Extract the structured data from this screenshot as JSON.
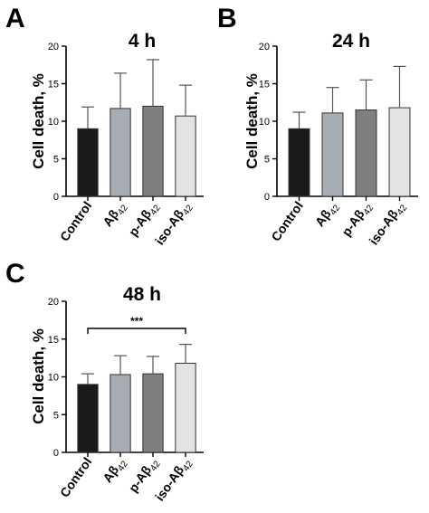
{
  "chart_data": [
    {
      "type": "bar",
      "panel": "A",
      "title": "4 h",
      "ylabel": "Cell death, %",
      "ylim": [
        0,
        20
      ],
      "yticks": [
        0,
        5,
        10,
        15,
        20
      ],
      "categories": [
        {
          "main": "Control",
          "sub": ""
        },
        {
          "main": "Aβ",
          "sub": "42"
        },
        {
          "main": "p-Aβ",
          "sub": "42"
        },
        {
          "main": "iso-Aβ",
          "sub": "42"
        }
      ],
      "values": [
        9.0,
        11.7,
        12.0,
        10.7
      ],
      "errors": [
        2.9,
        4.7,
        6.2,
        4.1
      ],
      "colors": [
        "#1a1a1a",
        "#a8adb3",
        "#7d7f80",
        "#e3e3e3"
      ],
      "significance": null
    },
    {
      "type": "bar",
      "panel": "B",
      "title": "24 h",
      "ylabel": "Cell death, %",
      "ylim": [
        0,
        20
      ],
      "yticks": [
        0,
        5,
        10,
        15,
        20
      ],
      "categories": [
        {
          "main": "Control",
          "sub": ""
        },
        {
          "main": "Aβ",
          "sub": "42"
        },
        {
          "main": "p-Aβ",
          "sub": "42"
        },
        {
          "main": "iso-Aβ",
          "sub": "42"
        }
      ],
      "values": [
        9.0,
        11.1,
        11.5,
        11.8
      ],
      "errors": [
        2.2,
        3.4,
        4.0,
        5.5
      ],
      "colors": [
        "#1a1a1a",
        "#a8adb3",
        "#7d7f80",
        "#e3e3e3"
      ],
      "significance": null
    },
    {
      "type": "bar",
      "panel": "C",
      "title": "48 h",
      "ylabel": "Cell death, %",
      "ylim": [
        0,
        20
      ],
      "yticks": [
        0,
        5,
        10,
        15,
        20
      ],
      "categories": [
        {
          "main": "Control",
          "sub": ""
        },
        {
          "main": "Aβ",
          "sub": "42"
        },
        {
          "main": "p-Aβ",
          "sub": "42"
        },
        {
          "main": "iso-Aβ",
          "sub": "42"
        }
      ],
      "values": [
        9.0,
        10.3,
        10.4,
        11.8
      ],
      "errors": [
        1.4,
        2.5,
        2.3,
        2.5
      ],
      "colors": [
        "#1a1a1a",
        "#a8adb3",
        "#7d7f80",
        "#e3e3e3"
      ],
      "significance": {
        "from": 0,
        "to": 3,
        "label": "***"
      }
    }
  ]
}
